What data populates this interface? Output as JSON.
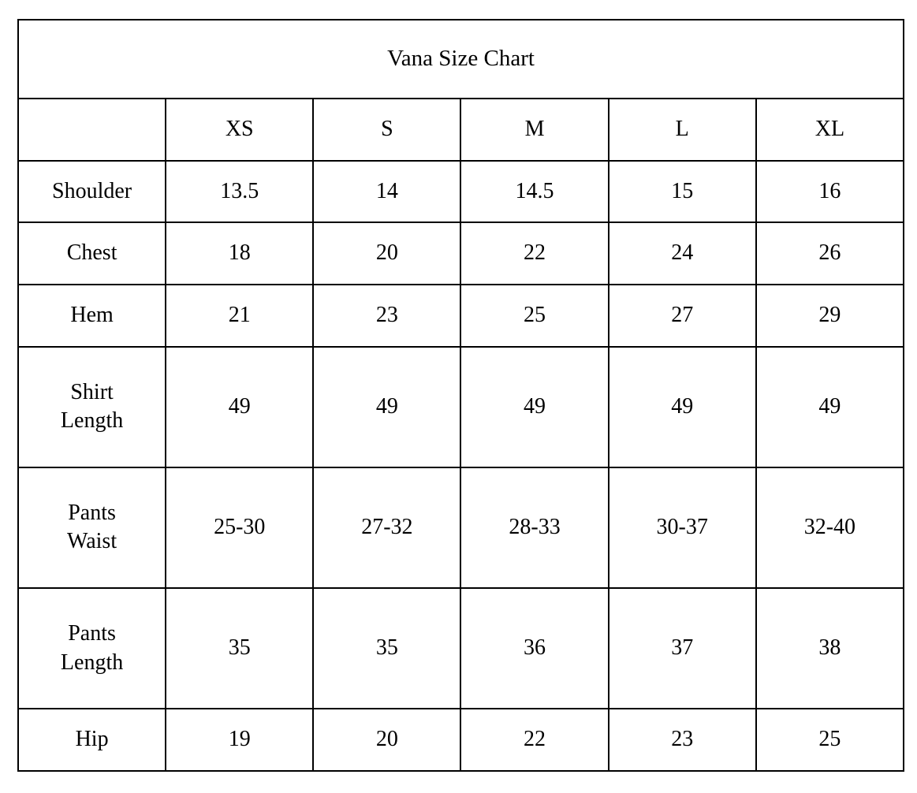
{
  "colors": {
    "text": "#000000",
    "border": "#000000",
    "background": "#ffffff"
  },
  "table": {
    "title": "Vana Size Chart",
    "corner_label": "",
    "size_columns": [
      "XS",
      "S",
      "M",
      "L",
      "XL"
    ],
    "rows": [
      {
        "label": "Shoulder",
        "values": [
          "13.5",
          "14",
          "14.5",
          "15",
          "16"
        ]
      },
      {
        "label": "Chest",
        "values": [
          "18",
          "20",
          "22",
          "24",
          "26"
        ]
      },
      {
        "label": "Hem",
        "values": [
          "21",
          "23",
          "25",
          "27",
          "29"
        ]
      },
      {
        "label": "Shirt\nLength",
        "values": [
          "49",
          "49",
          "49",
          "49",
          "49"
        ]
      },
      {
        "label": "Pants\nWaist",
        "values": [
          "25-30",
          "27-32",
          "28-33",
          "30-37",
          "32-40"
        ]
      },
      {
        "label": "Pants\nLength",
        "values": [
          "35",
          "35",
          "36",
          "37",
          "38"
        ]
      },
      {
        "label": "Hip",
        "values": [
          "19",
          "20",
          "22",
          "23",
          "25"
        ]
      }
    ]
  }
}
